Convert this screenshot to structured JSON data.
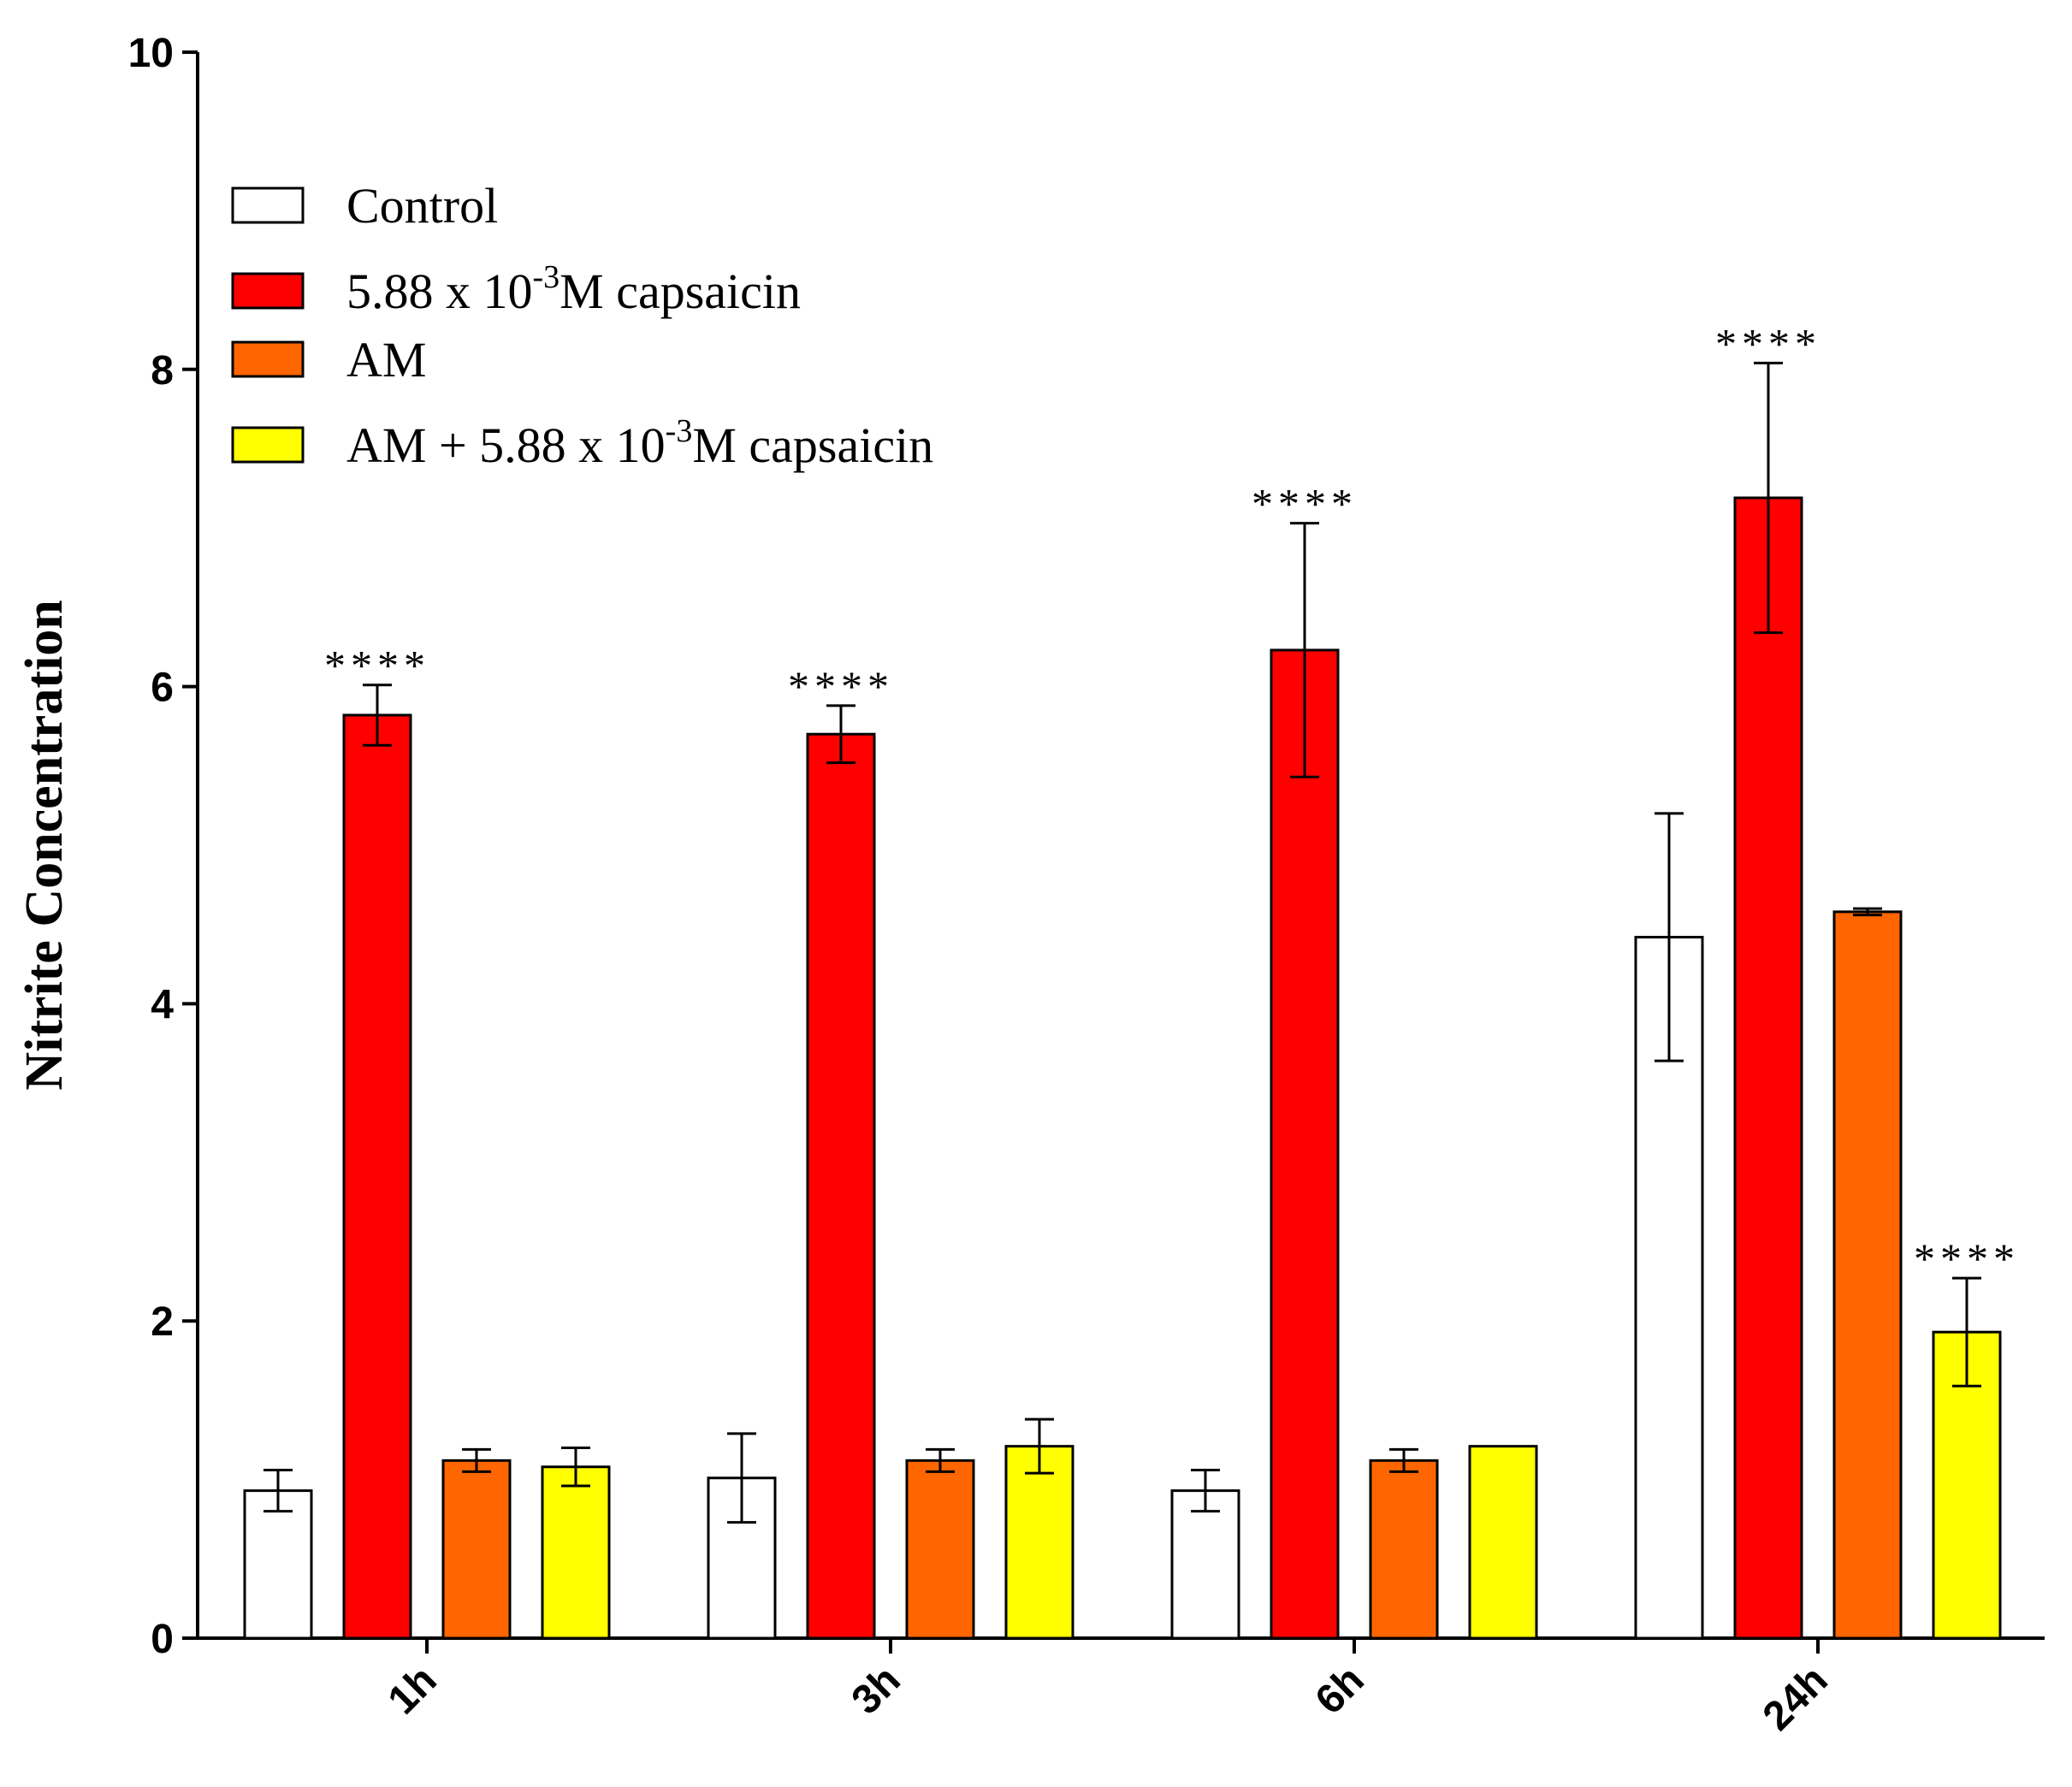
{
  "chart_data": {
    "type": "bar",
    "title": "",
    "xlabel": "",
    "ylabel": "Nitrite Concentration",
    "ylim": [
      0,
      10
    ],
    "yticks": [
      "0",
      "2",
      "4",
      "6",
      "8",
      "10"
    ],
    "categories": [
      "1h",
      "3h",
      "6h",
      "24h"
    ],
    "significance_label": "****",
    "legend_position": "top-left",
    "series": [
      {
        "name": "Control",
        "color": "#ffffff",
        "values": [
          0.93,
          1.01,
          0.93,
          4.42
        ],
        "errors": [
          0.13,
          0.28,
          0.13,
          0.78
        ],
        "significant": [
          false,
          false,
          false,
          false
        ]
      },
      {
        "name": "5.88 x 10-3M capsaicin",
        "legend_text": {
          "pre": "5.88 x 10",
          "sup": "-3",
          "post": "M capsaicin"
        },
        "color": "#ff0000",
        "values": [
          5.82,
          5.7,
          6.23,
          7.19
        ],
        "errors": [
          0.19,
          0.18,
          0.8,
          0.85
        ],
        "significant": [
          true,
          true,
          true,
          true
        ]
      },
      {
        "name": "AM",
        "color": "#ff6600",
        "values": [
          1.12,
          1.12,
          1.12,
          4.58
        ],
        "errors": [
          0.07,
          0.07,
          0.07,
          0.02
        ],
        "significant": [
          false,
          false,
          false,
          false
        ]
      },
      {
        "name": "AM + 5.88 x 10-3M capsaicin",
        "legend_text": {
          "pre": "AM + 5.88 x 10",
          "sup": "-3",
          "post": "M capsaicin"
        },
        "color": "#ffff00",
        "values": [
          1.08,
          1.21,
          1.21,
          1.93
        ],
        "errors": [
          0.12,
          0.17,
          0.0,
          0.34
        ],
        "significant": [
          false,
          false,
          false,
          true
        ]
      }
    ]
  }
}
